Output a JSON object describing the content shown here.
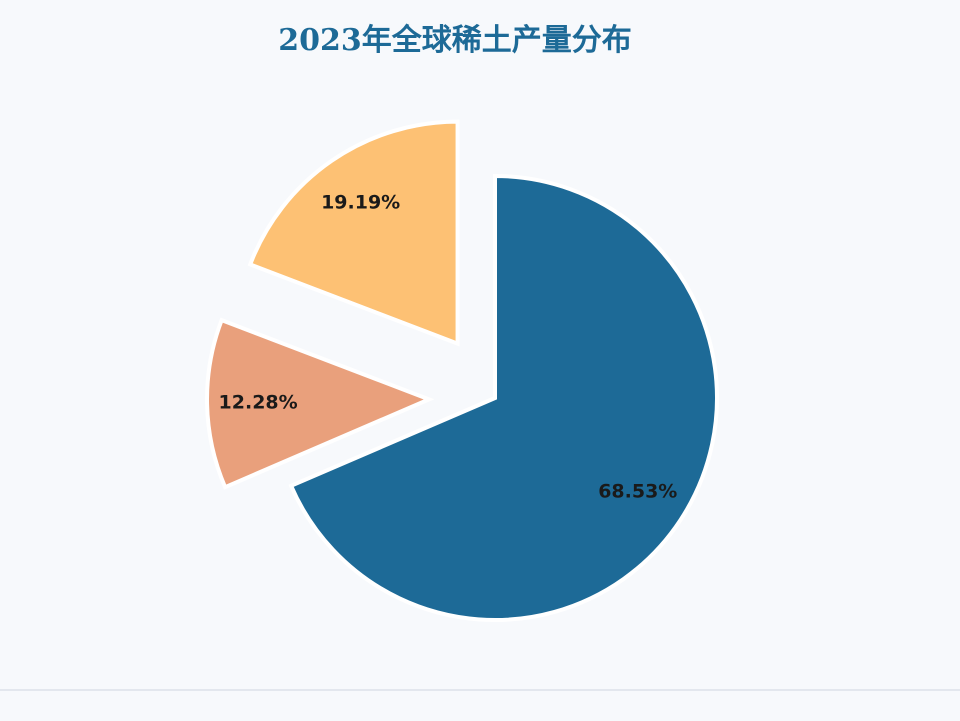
{
  "chart_data": {
    "type": "pie",
    "title": "2023年全球稀土产量分布",
    "values": [
      68.53,
      12.28,
      19.19
    ],
    "value_labels": [
      "68.53%",
      "12.28%",
      "19.19%"
    ],
    "colors": [
      "#1d6a97",
      "#e9a07c",
      "#fdc174"
    ]
  }
}
